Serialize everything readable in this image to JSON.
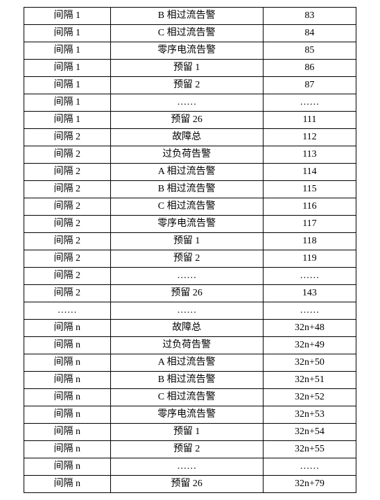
{
  "table": {
    "background_color": "#ffffff",
    "border_color": "#000000",
    "font_size": 14,
    "font_family": "SimSun",
    "column_widths": [
      "26%",
      "46%",
      "28%"
    ],
    "rows": [
      [
        "间隔 1",
        "B 相过流告警",
        "83"
      ],
      [
        "间隔 1",
        "C 相过流告警",
        "84"
      ],
      [
        "间隔 1",
        "零序电流告警",
        "85"
      ],
      [
        "间隔 1",
        "预留 1",
        "86"
      ],
      [
        "间隔 1",
        "预留 2",
        "87"
      ],
      [
        "间隔 1",
        "……",
        "……"
      ],
      [
        "间隔 1",
        "预留 26",
        "111"
      ],
      [
        "间隔 2",
        "故障总",
        "112"
      ],
      [
        "间隔 2",
        "过负荷告警",
        "113"
      ],
      [
        "间隔 2",
        "A 相过流告警",
        "114"
      ],
      [
        "间隔 2",
        "B 相过流告警",
        "115"
      ],
      [
        "间隔 2",
        "C 相过流告警",
        "116"
      ],
      [
        "间隔 2",
        "零序电流告警",
        "117"
      ],
      [
        "间隔 2",
        "预留 1",
        "118"
      ],
      [
        "间隔 2",
        "预留 2",
        "119"
      ],
      [
        "间隔 2",
        "……",
        "……"
      ],
      [
        "间隔 2",
        "预留 26",
        "143"
      ],
      [
        "……",
        "……",
        "……"
      ],
      [
        "间隔 n",
        "故障总",
        "32n+48"
      ],
      [
        "间隔 n",
        "过负荷告警",
        "32n+49"
      ],
      [
        "间隔 n",
        "A 相过流告警",
        "32n+50"
      ],
      [
        "间隔 n",
        "B 相过流告警",
        "32n+51"
      ],
      [
        "间隔 n",
        "C 相过流告警",
        "32n+52"
      ],
      [
        "间隔 n",
        "零序电流告警",
        "32n+53"
      ],
      [
        "间隔 n",
        "预留 1",
        "32n+54"
      ],
      [
        "间隔 n",
        "预留 2",
        "32n+55"
      ],
      [
        "间隔 n",
        "……",
        "……"
      ],
      [
        "间隔 n",
        "预留 26",
        "32n+79"
      ]
    ]
  }
}
